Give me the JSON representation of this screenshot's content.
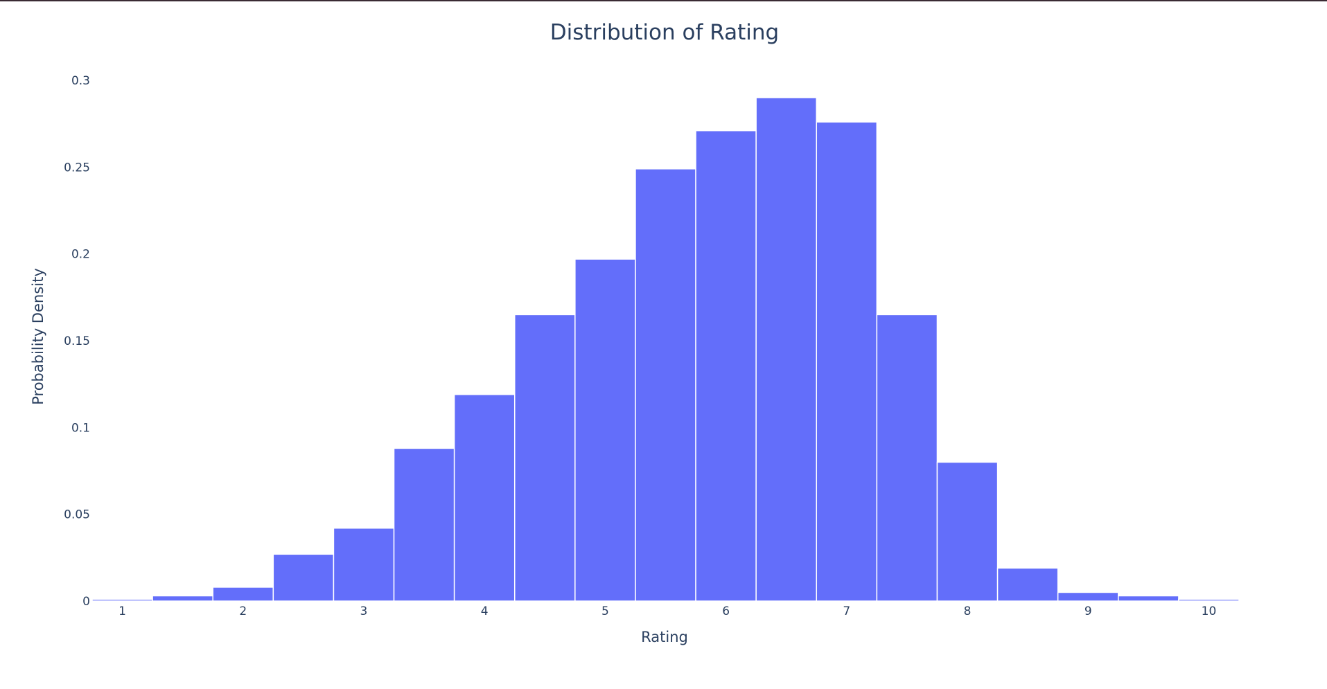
{
  "chart_data": {
    "type": "bar",
    "title": "Distribution of Rating",
    "xlabel": "Rating",
    "ylabel": "Probability Density",
    "bar_color": "#636efa",
    "bar_edge_color": "#ffffff",
    "grid": false,
    "xlim": [
      0.75,
      10.25
    ],
    "ylim": [
      0,
      0.3
    ],
    "bin_width": 0.5,
    "bins": [
      {
        "x0": 0.75,
        "x1": 1.25,
        "value": 0.001
      },
      {
        "x0": 1.25,
        "x1": 1.75,
        "value": 0.003
      },
      {
        "x0": 1.75,
        "x1": 2.25,
        "value": 0.008
      },
      {
        "x0": 2.25,
        "x1": 2.75,
        "value": 0.027
      },
      {
        "x0": 2.75,
        "x1": 3.25,
        "value": 0.042
      },
      {
        "x0": 3.25,
        "x1": 3.75,
        "value": 0.088
      },
      {
        "x0": 3.75,
        "x1": 4.25,
        "value": 0.119
      },
      {
        "x0": 4.25,
        "x1": 4.75,
        "value": 0.165
      },
      {
        "x0": 4.75,
        "x1": 5.25,
        "value": 0.197
      },
      {
        "x0": 5.25,
        "x1": 5.75,
        "value": 0.249
      },
      {
        "x0": 5.75,
        "x1": 6.25,
        "value": 0.271
      },
      {
        "x0": 6.25,
        "x1": 6.75,
        "value": 0.29
      },
      {
        "x0": 6.75,
        "x1": 7.25,
        "value": 0.276
      },
      {
        "x0": 7.25,
        "x1": 7.75,
        "value": 0.165
      },
      {
        "x0": 7.75,
        "x1": 8.25,
        "value": 0.08
      },
      {
        "x0": 8.25,
        "x1": 8.75,
        "value": 0.019
      },
      {
        "x0": 8.75,
        "x1": 9.25,
        "value": 0.005
      },
      {
        "x0": 9.25,
        "x1": 9.75,
        "value": 0.003
      },
      {
        "x0": 9.75,
        "x1": 10.25,
        "value": 0.001
      }
    ],
    "xticks": [
      {
        "value": 1,
        "label": "1"
      },
      {
        "value": 2,
        "label": "2"
      },
      {
        "value": 3,
        "label": "3"
      },
      {
        "value": 4,
        "label": "4"
      },
      {
        "value": 5,
        "label": "5"
      },
      {
        "value": 6,
        "label": "6"
      },
      {
        "value": 7,
        "label": "7"
      },
      {
        "value": 8,
        "label": "8"
      },
      {
        "value": 9,
        "label": "9"
      },
      {
        "value": 10,
        "label": "10"
      }
    ],
    "yticks": [
      {
        "value": 0,
        "label": "0"
      },
      {
        "value": 0.05,
        "label": "0.05"
      },
      {
        "value": 0.1,
        "label": "0.1"
      },
      {
        "value": 0.15,
        "label": "0.15"
      },
      {
        "value": 0.2,
        "label": "0.2"
      },
      {
        "value": 0.25,
        "label": "0.25"
      },
      {
        "value": 0.3,
        "label": "0.3"
      }
    ]
  }
}
